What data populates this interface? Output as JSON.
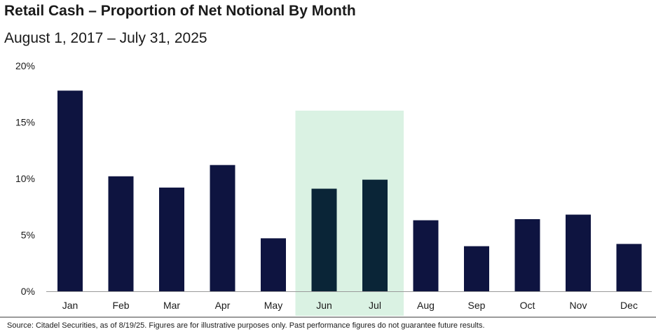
{
  "header": {
    "title": "Retail Cash – Proportion of Net Notional By Month",
    "subtitle": "August 1, 2017 – July 31, 2025"
  },
  "footnote": "Source: Citadel Securities, as of 8/19/25. Figures are for illustrative purposes only. Past performance figures do not guarantee future results.",
  "colors": {
    "bar": "#0e1440",
    "bar_highlighted": "#0a2537",
    "highlight_band": "#daf2e3",
    "axis": "#9a9a9a",
    "text": "#1a1a1a"
  },
  "chart_data": {
    "type": "bar",
    "title": "Retail Cash – Proportion of Net Notional By Month",
    "subtitle": "August 1, 2017 – July 31, 2025",
    "xlabel": "",
    "ylabel": "",
    "categories": [
      "Jan",
      "Feb",
      "Mar",
      "Apr",
      "May",
      "Jun",
      "Jul",
      "Aug",
      "Sep",
      "Oct",
      "Nov",
      "Dec"
    ],
    "values": [
      17.8,
      10.2,
      9.2,
      11.2,
      4.7,
      9.1,
      9.9,
      6.3,
      4.0,
      6.4,
      6.8,
      4.2
    ],
    "ylim": [
      0,
      20
    ],
    "yticks": [
      0,
      5,
      10,
      15,
      20
    ],
    "ytick_labels": [
      "0%",
      "5%",
      "10%",
      "15%",
      "20%"
    ],
    "highlighted_categories": [
      "Jun",
      "Jul"
    ],
    "grid": false,
    "legend": "none"
  }
}
